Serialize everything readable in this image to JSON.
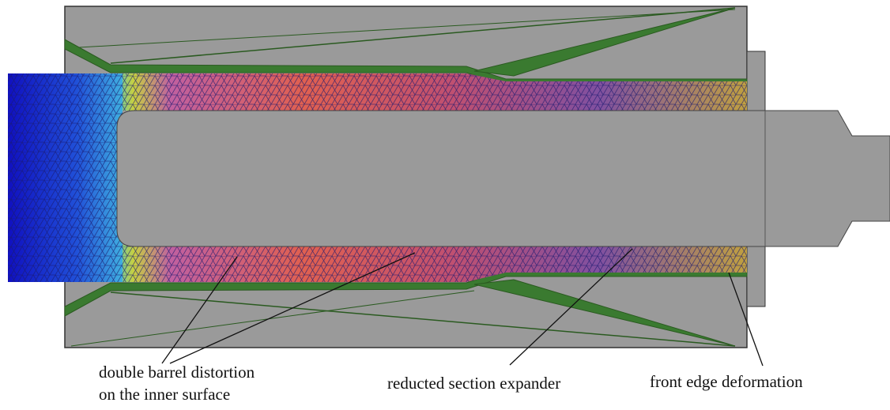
{
  "annotations": [
    {
      "lines": [
        "double barrel distortion",
        "on the inner surface"
      ]
    },
    {
      "lines": [
        "reducted section expander"
      ]
    },
    {
      "lines": [
        "front edge deformation"
      ]
    }
  ]
}
